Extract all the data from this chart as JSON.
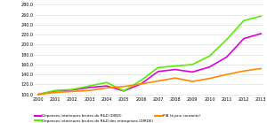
{
  "years": [
    2000,
    2001,
    2002,
    2003,
    2004,
    2005,
    2006,
    2007,
    2008,
    2009,
    2010,
    2011,
    2012,
    2013
  ],
  "dird": [
    100,
    107,
    109,
    114,
    117,
    107,
    121,
    146,
    150,
    145,
    155,
    175,
    212,
    222
  ],
  "dirde": [
    100,
    108,
    110,
    117,
    124,
    107,
    128,
    154,
    157,
    160,
    177,
    210,
    248,
    257
  ],
  "pib": [
    100,
    104,
    106,
    108,
    113,
    116,
    121,
    127,
    133,
    126,
    132,
    140,
    147,
    152
  ],
  "dird_color": "#dd00dd",
  "dirde_color": "#55ee00",
  "pib_color": "#ff8800",
  "ylim": [
    97,
    282
  ],
  "yticks": [
    100.0,
    120.0,
    140.0,
    160.0,
    180.0,
    200.0,
    220.0,
    240.0,
    260.0,
    280.0
  ],
  "legend_dird": "Dépenses intérieures brutes de R&D (DIRD)",
  "legend_dirde": "Dépenses intérieures brutes de R&D des entreprises (DIRDE)",
  "legend_pib": "PIB (à prix courants)",
  "line_width": 1.2,
  "bg_color": "#ffffff",
  "grid_color": "#d8d8d8"
}
